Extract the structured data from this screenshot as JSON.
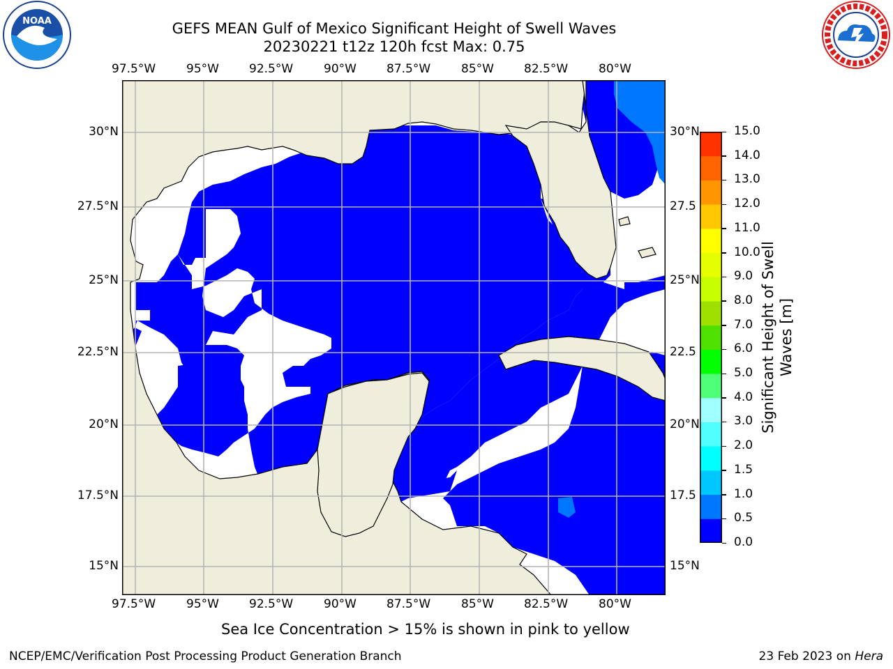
{
  "title_line1": "GEFS MEAN Gulf of Mexico Significant Height of Swell Waves",
  "title_line2": "20230221 t12z 120h fcst   Max: 0.75",
  "lon_ticks": [
    "97.5°W",
    "95°W",
    "92.5°W",
    "90°W",
    "87.5°W",
    "85°W",
    "82.5°W",
    "80°W"
  ],
  "lat_ticks_left": [
    "30°N",
    "27.5°N",
    "25°N",
    "22.5°N",
    "20°N",
    "17.5°N",
    "15°N"
  ],
  "lat_ticks_right": [
    "30°N",
    "27.5",
    "25°N",
    "22.5",
    "20°N",
    "17.5",
    "15°N"
  ],
  "colorbar": {
    "title_line1": "Significant Height of Swell",
    "title_line2": "Waves [m]",
    "tick_labels": [
      "15.0",
      "14.0",
      "13.0",
      "12.0",
      "11.0",
      "10.0",
      "9.0",
      "8.0",
      "7.0",
      "6.0",
      "5.0",
      "4.0",
      "3.0",
      "2.0",
      "1.5",
      "1.0",
      "0.5",
      "0.0"
    ],
    "bins": [
      0.0,
      0.5,
      1.0,
      1.5,
      2.0,
      3.0,
      4.0,
      5.0,
      6.0,
      7.0,
      8.0,
      9.0,
      10.0,
      11.0,
      12.0,
      13.0,
      14.0,
      15.0
    ],
    "colors": [
      "#0000ff",
      "#0077ff",
      "#00c8ff",
      "#00ffff",
      "#50ffff",
      "#a0ffff",
      "#50ff78",
      "#00ff00",
      "#50e000",
      "#a0e000",
      "#c8ff00",
      "#e6ff00",
      "#ffff00",
      "#ffc800",
      "#ff9600",
      "#ff6400",
      "#ff3200",
      "#ff0000"
    ]
  },
  "colors": {
    "land": "#efeedc",
    "ocean_low": "#0000ff",
    "ocean_mid": "#0077ff",
    "no_swell": "#ffffff",
    "grid": "#b4b4b4"
  },
  "caption": "Sea Ice Concentration > 15% is shown in pink to yellow",
  "footer_left": "NCEP/EMC/Verification Post Processing Product Generation Branch",
  "footer_right_date": "23 Feb 2023 on",
  "footer_right_host": "Hera",
  "logos": {
    "left": "noaa-logo",
    "right": "nws-logo"
  }
}
